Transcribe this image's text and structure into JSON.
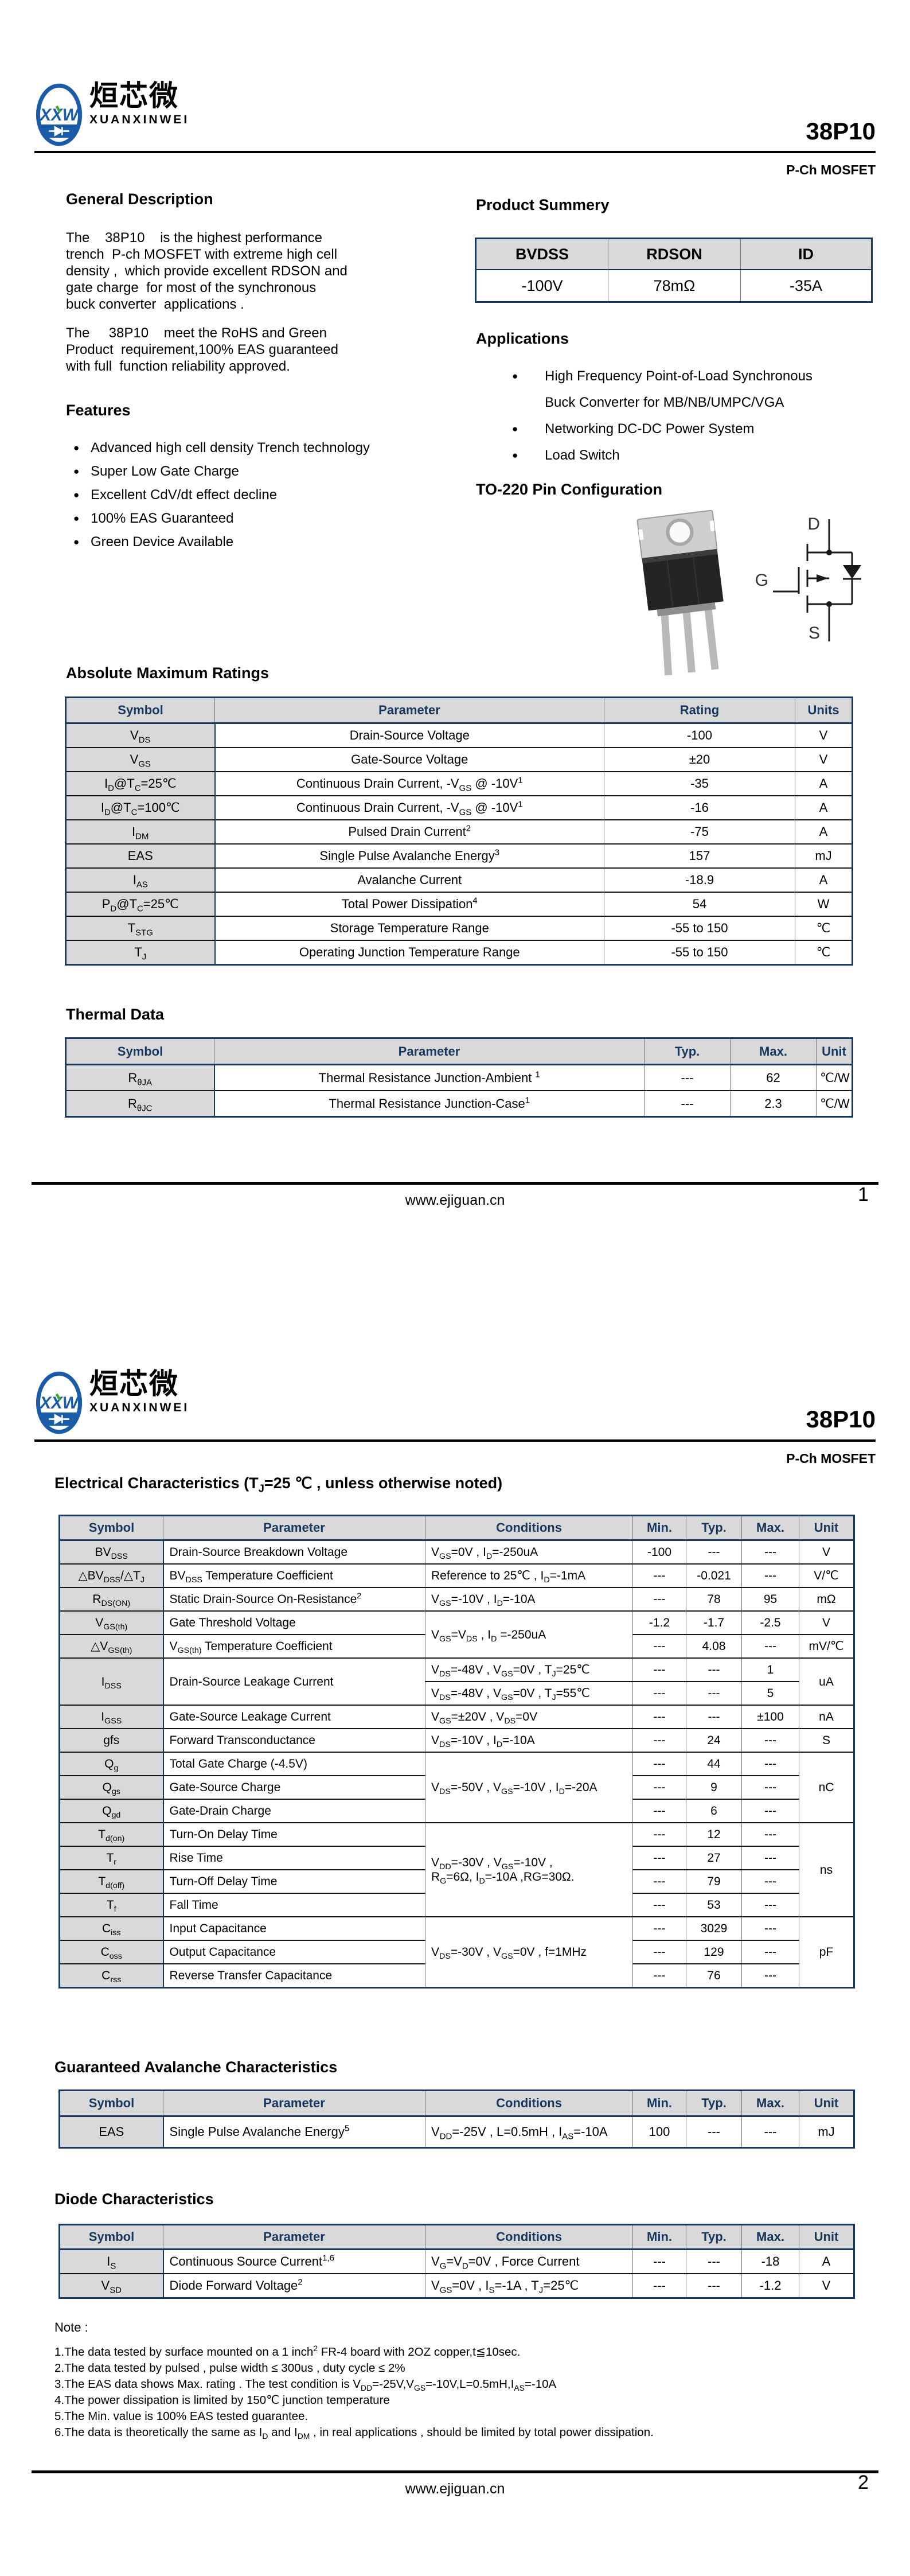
{
  "brand": {
    "cn": "烜芯微",
    "en": "XUANXINWEI"
  },
  "part_number": "38P10",
  "subtitle": "P-Ch MOSFET",
  "page1": {
    "general_description": {
      "title": "General Description",
      "p1": "The    38P10    is the highest performance\ntrench  P-ch MOSFET with extreme high cell\ndensity ,  which provide excellent RDSON and\ngate charge  for most of the synchronous\nbuck converter  applications .",
      "p2": "The     38P10    meet the RoHS and Green\nProduct  requirement,100% EAS guaranteed\nwith full  function reliability approved."
    },
    "features": {
      "title": "Features",
      "items": [
        "Advanced high cell density Trench technology",
        "Super Low Gate Charge",
        "Excellent CdV/dt effect decline",
        "100% EAS Guaranteed",
        "Green Device Available"
      ]
    },
    "product_summary": {
      "title": "Product Summery",
      "table": {
        "head": [
          "BVDSS",
          "RDSON",
          "ID"
        ],
        "rows": [
          [
            "-100V",
            "78mΩ",
            "-35A"
          ]
        ]
      }
    },
    "applications": {
      "title": "Applications",
      "items": [
        "High Frequency Point-of-Load Synchronous\nBuck Converter for MB/NB/UMPC/VGA",
        "Networking DC-DC Power System",
        "Load Switch"
      ]
    },
    "pin_config": {
      "title": "TO-220 Pin Configuration",
      "pins": {
        "d": "D",
        "g": "G",
        "s": "S"
      }
    },
    "abs_max": {
      "title": "Absolute Maximum Ratings",
      "table": {
        "head": [
          "Symbol",
          "Parameter",
          "Rating",
          "Units"
        ],
        "rows": [
          [
            {
              "t": "V_{DS}",
              "c": "sym"
            },
            "Drain-Source Voltage",
            "-100",
            "V"
          ],
          [
            {
              "t": "V_{GS}",
              "c": "sym"
            },
            "Gate-Source Voltage",
            "±20",
            "V"
          ],
          [
            {
              "t": "I_{D}@T_{C}=25℃",
              "c": "sym"
            },
            "Continuous Drain Current, -V_{GS} @ -10V^{1}",
            "-35",
            "A"
          ],
          [
            {
              "t": "I_{D}@T_{C}=100℃",
              "c": "sym"
            },
            "Continuous Drain Current, -V_{GS} @ -10V^{1}",
            "-16",
            "A"
          ],
          [
            {
              "t": "I_{DM}",
              "c": "sym"
            },
            "Pulsed Drain Current^{2}",
            "-75",
            "A"
          ],
          [
            {
              "t": "EAS",
              "c": "sym"
            },
            "Single Pulse Avalanche Energy^{3}",
            "157",
            "mJ"
          ],
          [
            {
              "t": "I_{AS}",
              "c": "sym"
            },
            "Avalanche Current",
            "-18.9",
            "A"
          ],
          [
            {
              "t": "P_{D}@T_{C}=25℃",
              "c": "sym"
            },
            "Total Power Dissipation^{4}",
            "54",
            "W"
          ],
          [
            {
              "t": "T_{STG}",
              "c": "sym"
            },
            "Storage Temperature Range",
            "-55 to 150",
            "℃"
          ],
          [
            {
              "t": "T_{J}",
              "c": "sym"
            },
            "Operating Junction Temperature Range",
            "-55 to 150",
            "℃"
          ]
        ]
      }
    },
    "thermal": {
      "title": "Thermal Data",
      "table": {
        "head": [
          "Symbol",
          "Parameter",
          "Typ.",
          "Max.",
          "Unit"
        ],
        "rows": [
          [
            {
              "t": "R_{θJA}",
              "c": "sym"
            },
            "Thermal Resistance Junction-Ambient ^{1}",
            "---",
            "62",
            "℃/W"
          ],
          [
            {
              "t": "R_{θJC}",
              "c": "sym"
            },
            "Thermal Resistance Junction-Case^{1}",
            "---",
            "2.3",
            "℃/W"
          ]
        ]
      }
    },
    "footer": {
      "url": "www.ejiguan.cn",
      "page": "1"
    }
  },
  "page2": {
    "electrical": {
      "title": "Electrical Characteristics (T_{J}=25 ℃ , unless otherwise noted)",
      "table": {
        "head": [
          "Symbol",
          "Parameter",
          "Conditions",
          "Min.",
          "Typ.",
          "Max.",
          "Unit"
        ],
        "rows": [
          [
            {
              "t": "BV_{DSS}",
              "c": "sym"
            },
            {
              "t": "Drain-Source Breakdown Voltage",
              "c": "l"
            },
            {
              "t": "V_{GS}=0V , I_{D}=-250uA",
              "c": "l"
            },
            "-100",
            "---",
            "---",
            "V"
          ],
          [
            {
              "t": "△BV_{DSS}/△T_{J}",
              "c": "sym"
            },
            {
              "t": "BV_{DSS} Temperature Coefficient",
              "c": "l"
            },
            {
              "t": "Reference to 25℃ , I_{D}=-1mA",
              "c": "l"
            },
            "---",
            "-0.021",
            "---",
            "V/℃"
          ],
          [
            {
              "t": "R_{DS(ON)}",
              "c": "sym"
            },
            {
              "t": "Static Drain-Source On-Resistance^{2}",
              "c": "l"
            },
            {
              "t": "V_{GS}=-10V , I_{D}=-10A",
              "c": "l"
            },
            "---",
            "78",
            "95",
            "mΩ"
          ],
          [
            {
              "t": "V_{GS(th)}",
              "c": "sym"
            },
            {
              "t": "Gate Threshold Voltage",
              "c": "l"
            },
            {
              "t": "V_{GS}=V_{DS} , I_{D} =-250uA",
              "c": "l",
              "rs": 2
            },
            "-1.2",
            "-1.7",
            "-2.5",
            "V"
          ],
          [
            {
              "t": "△V_{GS(th)}",
              "c": "sym"
            },
            {
              "t": "V_{GS(th)} Temperature Coefficient",
              "c": "l"
            },
            "---",
            "4.08",
            "---",
            "mV/℃"
          ],
          [
            {
              "t": "I_{DSS}",
              "c": "sym",
              "rs": 2
            },
            {
              "t": "Drain-Source Leakage Current",
              "c": "l",
              "rs": 2
            },
            {
              "t": "V_{DS}=-48V , V_{GS}=0V , T_{J}=25℃",
              "c": "l"
            },
            "---",
            "---",
            "1",
            {
              "t": "uA",
              "rs": 2
            }
          ],
          [
            {
              "t": "V_{DS}=-48V , V_{GS}=0V , T_{J}=55℃",
              "c": "l"
            },
            "---",
            "---",
            "5"
          ],
          [
            {
              "t": "I_{GSS}",
              "c": "sym"
            },
            {
              "t": "Gate-Source Leakage Current",
              "c": "l"
            },
            {
              "t": "V_{GS}=±20V , V_{DS}=0V",
              "c": "l"
            },
            "---",
            "---",
            "±100",
            "nA"
          ],
          [
            {
              "t": "gfs",
              "c": "sym"
            },
            {
              "t": "Forward Transconductance",
              "c": "l"
            },
            {
              "t": "V_{DS}=-10V , I_{D}=-10A",
              "c": "l"
            },
            "---",
            "24",
            "---",
            "S"
          ],
          [
            {
              "t": "Q_{g}",
              "c": "sym"
            },
            {
              "t": "Total Gate Charge (-4.5V)",
              "c": "l"
            },
            {
              "t": "V_{DS}=-50V , V_{GS}=-10V , I_{D}=-20A",
              "c": "l",
              "rs": 3
            },
            "---",
            "44",
            "---",
            {
              "t": "nC",
              "rs": 3
            }
          ],
          [
            {
              "t": "Q_{gs}",
              "c": "sym"
            },
            {
              "t": "Gate-Source Charge",
              "c": "l"
            },
            "---",
            "9",
            "---"
          ],
          [
            {
              "t": "Q_{gd}",
              "c": "sym"
            },
            {
              "t": "Gate-Drain Charge",
              "c": "l"
            },
            "---",
            "6",
            "---"
          ],
          [
            {
              "t": "T_{d(on)}",
              "c": "sym"
            },
            {
              "t": "Turn-On Delay Time",
              "c": "l"
            },
            {
              "t": "V_{DD}=-30V , V_{GS}=-10V ,\nR_{G}=6Ω, I_{D}=-10A ,RG=30Ω.",
              "c": "l",
              "rs": 4
            },
            "---",
            "12",
            "---",
            {
              "t": "ns",
              "rs": 4
            }
          ],
          [
            {
              "t": "T_{r}",
              "c": "sym"
            },
            {
              "t": "Rise Time",
              "c": "l"
            },
            "---",
            "27",
            "---"
          ],
          [
            {
              "t": "T_{d(off)}",
              "c": "sym"
            },
            {
              "t": "Turn-Off Delay Time",
              "c": "l"
            },
            "---",
            "79",
            "---"
          ],
          [
            {
              "t": "T_{f}",
              "c": "sym"
            },
            {
              "t": "Fall Time",
              "c": "l"
            },
            "---",
            "53",
            "---"
          ],
          [
            {
              "t": "C_{iss}",
              "c": "sym"
            },
            {
              "t": "Input Capacitance",
              "c": "l"
            },
            {
              "t": "V_{DS}=-30V , V_{GS}=0V , f=1MHz",
              "c": "l",
              "rs": 3
            },
            "---",
            "3029",
            "---",
            {
              "t": "pF",
              "rs": 3
            }
          ],
          [
            {
              "t": "C_{oss}",
              "c": "sym"
            },
            {
              "t": "Output Capacitance",
              "c": "l"
            },
            "---",
            "129",
            "---"
          ],
          [
            {
              "t": "C_{rss}",
              "c": "sym"
            },
            {
              "t": "Reverse Transfer Capacitance",
              "c": "l"
            },
            "---",
            "76",
            "---"
          ]
        ]
      }
    },
    "avalanche": {
      "title": "Guaranteed Avalanche Characteristics",
      "table": {
        "head": [
          "Symbol",
          "Parameter",
          "Conditions",
          "Min.",
          "Typ.",
          "Max.",
          "Unit"
        ],
        "rows": [
          [
            {
              "t": "EAS",
              "c": "sym"
            },
            {
              "t": "Single Pulse Avalanche Energy^{5}",
              "c": "l"
            },
            {
              "t": "V_{DD}=-25V , L=0.5mH , I_{AS}=-10A",
              "c": "l"
            },
            "100",
            "---",
            "---",
            "mJ"
          ]
        ]
      }
    },
    "diode": {
      "title": "Diode Characteristics",
      "table": {
        "head": [
          "Symbol",
          "Parameter",
          "Conditions",
          "Min.",
          "Typ.",
          "Max.",
          "Unit"
        ],
        "rows": [
          [
            {
              "t": "I_{S}",
              "c": "sym"
            },
            {
              "t": "Continuous Source Current^{1,6}",
              "c": "l"
            },
            {
              "t": "V_{G}=V_{D}=0V , Force Current",
              "c": "l"
            },
            "---",
            "---",
            "-18",
            "A"
          ],
          [
            {
              "t": "V_{SD}",
              "c": "sym"
            },
            {
              "t": "Diode Forward Voltage^{2}",
              "c": "l"
            },
            {
              "t": "V_{GS}=0V , I_{S}=-1A , T_{J}=25℃",
              "c": "l"
            },
            "---",
            "---",
            "-1.2",
            "V"
          ]
        ]
      }
    },
    "notes": {
      "title": "Note :",
      "items": [
        "1.The data tested by surface mounted on a 1 inch^{2} FR-4 board with 2OZ copper,t≦10sec.",
        "2.The data tested by pulsed , pulse width ≤ 300us , duty cycle ≤ 2%",
        "3.The EAS data shows Max. rating . The test condition is V_{DD}=-25V,V_{GS}=-10V,L=0.5mH,I_{AS}=-10A",
        "4.The power dissipation is limited by 150℃  junction temperature",
        "5.The Min. value is 100% EAS tested guarantee.",
        "6.The data is theoretically the same as I_{D} and I_{DM} , in real applications , should be limited by total power dissipation."
      ]
    },
    "footer": {
      "url": "www.ejiguan.cn",
      "page": "2"
    }
  }
}
